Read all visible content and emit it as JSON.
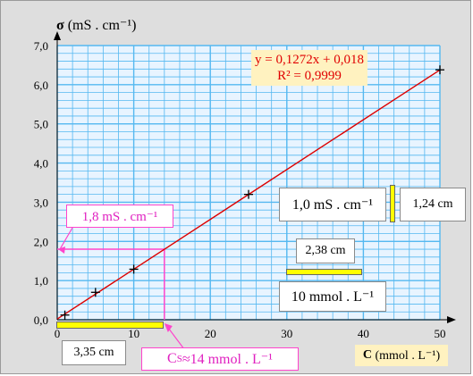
{
  "chart_data": {
    "type": "scatter",
    "ylabel_symbol": "σ",
    "ylabel_unit": "(mS . cm⁻¹)",
    "xlabel_symbol": "C",
    "xlabel_unit": "(mmol . L⁻¹)",
    "xlim": [
      0,
      50
    ],
    "ylim": [
      0,
      7
    ],
    "x_ticks": [
      "0",
      "10",
      "20",
      "30",
      "40",
      "50"
    ],
    "y_ticks": [
      "0,0",
      "1,0",
      "2,0",
      "3,0",
      "4,0",
      "5,0",
      "6,0",
      "7,0"
    ],
    "grid": true,
    "series": [
      {
        "x": [
          1,
          5,
          10,
          25,
          50
        ],
        "y": [
          0.12,
          0.7,
          1.29,
          3.2,
          6.38
        ]
      }
    ],
    "trendline": {
      "slope": 0.1272,
      "intercept": 0.018,
      "equation": "y = 0,1272x + 0,018",
      "r2": "R² = 0,9999"
    },
    "annotations": {
      "sigma_reading": {
        "label": "1,8 mS . cm⁻¹",
        "value": 1.8
      },
      "cs_reading": {
        "label_main": "C",
        "label_sub": "S",
        "label_rest": " ≈14 mmol . L⁻¹",
        "value": 14
      },
      "x_length": "3,35 cm",
      "y_scale_value": "1,0 mS . cm⁻¹",
      "y_scale_length": "1,24 cm",
      "x_scale_length": "2,38 cm",
      "x_scale_value": "10 mmol . L⁻¹"
    }
  },
  "colors": {
    "plot_bg": "#e8f4ff",
    "grid": "#55b8f0",
    "fit_line": "#dd0000",
    "marker": "#000000",
    "pink": "#ff44cc",
    "yellow": "#ffff00",
    "equation_bg": "#fff2c0"
  }
}
